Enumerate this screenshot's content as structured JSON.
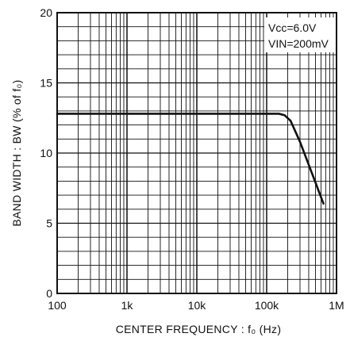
{
  "chart_data": {
    "type": "line",
    "xlabel": "CENTER  FREQUENCY : f₀  (Hz)",
    "ylabel": "BAND  WIDTH : BW  (% of f₀)",
    "xscale": "log",
    "xlim": [
      100,
      1000000
    ],
    "ylim": [
      0,
      20
    ],
    "x_tick_values": [
      100,
      1000,
      10000,
      100000,
      1000000
    ],
    "x_tick_labels": [
      "100",
      "1k",
      "10k",
      "100k",
      "1M"
    ],
    "y_tick_values": [
      0,
      5,
      10,
      15,
      20
    ],
    "y_tick_labels": [
      "0",
      "5",
      "10",
      "15",
      "20"
    ],
    "grid": true,
    "annotations": [
      "Vcc=6.0V",
      "VIN=200mV"
    ],
    "series": [
      {
        "x": [
          100,
          1000,
          10000,
          100000,
          150000,
          180000,
          220000,
          300000,
          450000,
          650000
        ],
        "y": [
          12.8,
          12.8,
          12.8,
          12.8,
          12.8,
          12.7,
          12.3,
          10.8,
          8.5,
          6.4
        ]
      }
    ]
  },
  "colors": {
    "line": "#111111",
    "grid": "#111111",
    "background": "#ffffff"
  }
}
